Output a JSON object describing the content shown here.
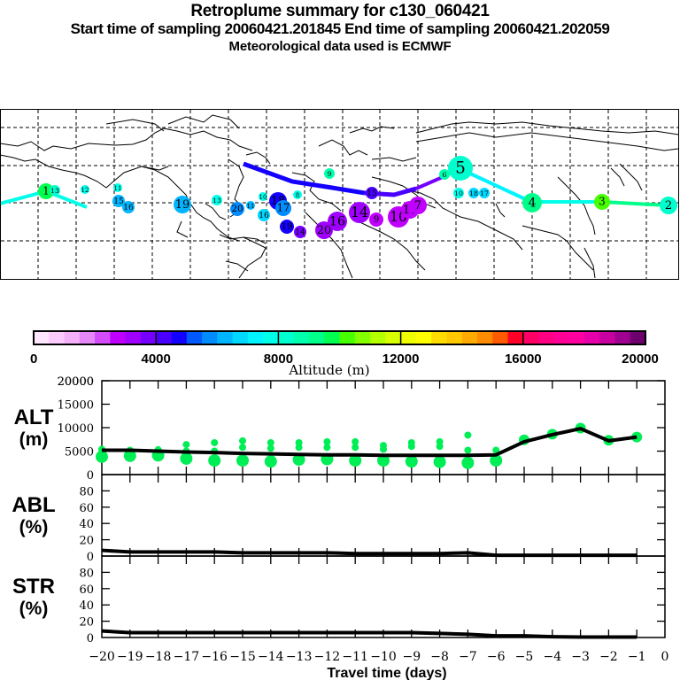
{
  "header": {
    "title": "Retroplume summary for c130_060421",
    "sampling": "Start time of sampling 20060421.201845     End time of sampling 20060421.202059",
    "met": "Meteorological data used is ECMWF"
  },
  "map": {
    "description": "Retroplume cluster centroids over world map, labeled by days back (1-20), colored by altitude",
    "clusters": [
      {
        "label": "1",
        "alt": 9500,
        "size": 3
      },
      {
        "label": "13",
        "alt": 8000,
        "size": 1
      },
      {
        "label": "12",
        "alt": 7500,
        "size": 1
      },
      {
        "label": "11",
        "alt": 7800,
        "size": 1
      },
      {
        "label": "15",
        "alt": 6000,
        "size": 2
      },
      {
        "label": "16",
        "alt": 6000,
        "size": 2
      },
      {
        "label": "19",
        "alt": 6000,
        "size": 3
      },
      {
        "label": "13",
        "alt": 7500,
        "size": 1
      },
      {
        "label": "20",
        "alt": 5800,
        "size": 2
      },
      {
        "label": "11",
        "alt": 6000,
        "size": 1
      },
      {
        "label": "10",
        "alt": 7500,
        "size": 1
      },
      {
        "label": "18",
        "alt": 4500,
        "size": 2
      },
      {
        "label": "17",
        "alt": 5500,
        "size": 2
      },
      {
        "label": "16",
        "alt": 6500,
        "size": 2
      },
      {
        "label": "8",
        "alt": 7800,
        "size": 1
      },
      {
        "label": "19",
        "alt": 4500,
        "size": 2
      },
      {
        "label": "14",
        "alt": 3500,
        "size": 2
      },
      {
        "label": "20",
        "alt": 3000,
        "size": 3
      },
      {
        "label": "16",
        "alt": 3000,
        "size": 3
      },
      {
        "label": "14",
        "alt": 3000,
        "size": 3
      },
      {
        "label": "15",
        "alt": 4000,
        "size": 2
      },
      {
        "label": "9",
        "alt": 2500,
        "size": 2
      },
      {
        "label": "10",
        "alt": 2500,
        "size": 3
      },
      {
        "label": "11",
        "alt": 2500,
        "size": 2
      },
      {
        "label": "7",
        "alt": 2500,
        "size": 3
      },
      {
        "label": "5",
        "alt": 8000,
        "size": 3
      },
      {
        "label": "6",
        "alt": 8500,
        "size": 1
      },
      {
        "label": "4",
        "alt": 9000,
        "size": 3
      },
      {
        "label": "3",
        "alt": 10000,
        "size": 2
      },
      {
        "label": "2",
        "alt": 8000,
        "size": 2
      },
      {
        "label": "10",
        "alt": 7500,
        "size": 1
      },
      {
        "label": "18",
        "alt": 6500,
        "size": 1
      },
      {
        "label": "17",
        "alt": 6500,
        "size": 1
      },
      {
        "label": "9",
        "alt": 8800,
        "size": 1
      }
    ]
  },
  "colorbar": {
    "colors": [
      "#ffe6ff",
      "#fccafc",
      "#f3aff8",
      "#e587f7",
      "#d24cf9",
      "#c000ff",
      "#9f00ff",
      "#7600ff",
      "#4a00ff",
      "#1400ff",
      "#0058ff",
      "#008cff",
      "#00b4ff",
      "#00d8ff",
      "#00f4ff",
      "#00ffe9",
      "#00ffce",
      "#00ffac",
      "#00ff8a",
      "#00ff50",
      "#48ff00",
      "#84ff00",
      "#b4ff00",
      "#d8ff00",
      "#f0ff00",
      "#ffff00",
      "#ffdc00",
      "#ffc800",
      "#ffaa00",
      "#ff8c00",
      "#ff5a00",
      "#ff0028",
      "#ff0064",
      "#ff0082",
      "#ff0096",
      "#ff00a0",
      "#e600aa",
      "#c800a0",
      "#a00090",
      "#6e006e"
    ],
    "ticks": [
      "0",
      "4000",
      "8000",
      "12000",
      "16000",
      "20000"
    ],
    "label": "Altitude (m)"
  },
  "chart_data": [
    {
      "type": "line",
      "title": "ALT",
      "ylabel": "ALT\n(m)",
      "ylabel_line1": "ALT",
      "ylabel_line2": "(m)",
      "x": [
        -20,
        -19,
        -18,
        -17,
        -16,
        -15,
        -14,
        -13,
        -12,
        -11,
        -10,
        -9,
        -8,
        -7,
        -6,
        -5,
        -4,
        -3,
        -2,
        -1
      ],
      "values": [
        5200,
        5200,
        5000,
        4800,
        4700,
        4500,
        4400,
        4300,
        4200,
        4200,
        4100,
        4100,
        4100,
        4100,
        4200,
        7000,
        8500,
        9800,
        7200,
        8000
      ],
      "ylim": [
        0,
        20000
      ],
      "yticks": [
        "0",
        "5000",
        "10000",
        "15000",
        "20000"
      ],
      "scatter_color": "#00ee55",
      "scatter": [
        {
          "x": -20,
          "y": [
            5400,
            3800
          ]
        },
        {
          "x": -19,
          "y": [
            5200,
            4000
          ]
        },
        {
          "x": -18,
          "y": [
            5300,
            4100
          ]
        },
        {
          "x": -17,
          "y": [
            6400,
            5000,
            3400
          ]
        },
        {
          "x": -16,
          "y": [
            6800,
            5000,
            3000
          ]
        },
        {
          "x": -15,
          "y": [
            7200,
            5800,
            3000
          ]
        },
        {
          "x": -14,
          "y": [
            6800,
            5600,
            2800
          ]
        },
        {
          "x": -13,
          "y": [
            6800,
            5800,
            3200
          ]
        },
        {
          "x": -12,
          "y": [
            7000,
            5800,
            3300
          ]
        },
        {
          "x": -11,
          "y": [
            7000,
            5800,
            3000
          ]
        },
        {
          "x": -10,
          "y": [
            6200,
            5400,
            3000
          ]
        },
        {
          "x": -9,
          "y": [
            6800,
            6000,
            2800
          ]
        },
        {
          "x": -8,
          "y": [
            7000,
            6000,
            2700
          ]
        },
        {
          "x": -7,
          "y": [
            8400,
            5200,
            2500
          ]
        },
        {
          "x": -6,
          "y": [
            5200,
            3000
          ]
        },
        {
          "x": -5,
          "y": [
            7400
          ]
        },
        {
          "x": -4,
          "y": [
            8600
          ]
        },
        {
          "x": -3,
          "y": [
            9900
          ]
        },
        {
          "x": -2,
          "y": [
            7300
          ]
        },
        {
          "x": -1,
          "y": [
            8000
          ]
        }
      ]
    },
    {
      "type": "line",
      "title": "ABL",
      "ylabel_line1": "ABL",
      "ylabel_line2": "(%)",
      "x": [
        -20,
        -19,
        -18,
        -17,
        -16,
        -15,
        -14,
        -13,
        -12,
        -11,
        -10,
        -9,
        -8,
        -7,
        -6,
        -5,
        -4,
        -3,
        -2,
        -1
      ],
      "values": [
        7,
        5,
        5,
        5,
        5,
        4,
        4,
        4,
        4,
        3,
        3,
        3,
        3,
        4,
        1,
        1,
        1,
        1,
        1,
        1
      ],
      "ylim": [
        0,
        100
      ],
      "yticks": [
        "0",
        "20",
        "40",
        "60",
        "80"
      ]
    },
    {
      "type": "line",
      "title": "STR",
      "ylabel_line1": "STR",
      "ylabel_line2": "(%)",
      "x": [
        -20,
        -19,
        -18,
        -17,
        -16,
        -15,
        -14,
        -13,
        -12,
        -11,
        -10,
        -9,
        -8,
        -7,
        -6,
        -5,
        -4,
        -3,
        -2,
        -1
      ],
      "values": [
        8,
        6,
        6,
        6,
        6,
        6,
        6,
        6,
        6,
        6,
        6,
        6,
        5,
        4,
        2,
        2,
        1,
        0.5,
        0.5,
        0.5
      ],
      "ylim": [
        0,
        100
      ],
      "yticks": [
        "0",
        "20",
        "40",
        "60",
        "80"
      ]
    }
  ],
  "xaxis": {
    "ticks": [
      "-20",
      "-19",
      "-18",
      "-17",
      "-16",
      "-15",
      "-14",
      "-13",
      "-12",
      "-11",
      "-10",
      "-9",
      "-8",
      "-7",
      "-6",
      "-5",
      "-4",
      "-3",
      "-2",
      "-1",
      "0"
    ],
    "label": "Travel time (days)"
  }
}
